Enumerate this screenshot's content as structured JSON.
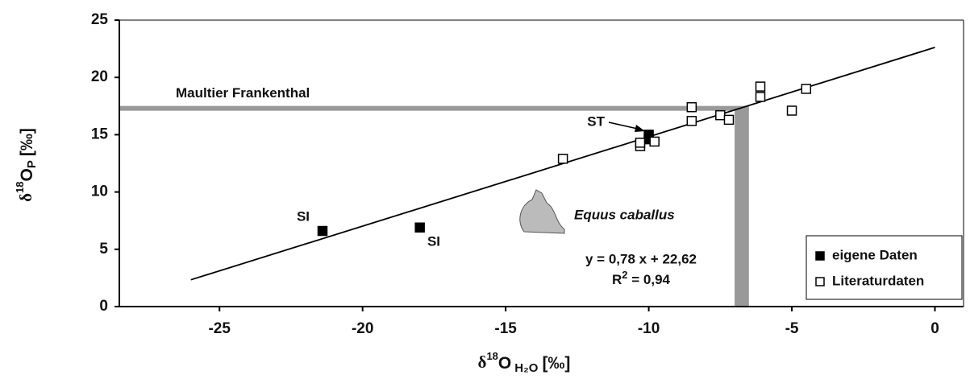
{
  "chart_data": {
    "type": "scatter",
    "x_label": {
      "prefix": "δ",
      "sup": "18",
      "main": "O",
      "sub": "H₂O",
      "suffix": "[‰]"
    },
    "y_label": {
      "prefix": "δ",
      "sup": "18",
      "main": "O",
      "sub": "P",
      "suffix": "[‰]"
    },
    "xlim": [
      -28.5,
      1
    ],
    "ylim": [
      0,
      25
    ],
    "xticks": [
      -25,
      -20,
      -15,
      -10,
      -5,
      0
    ],
    "yticks": [
      0,
      5,
      10,
      15,
      20,
      25
    ],
    "grid": false,
    "legend": "lower right",
    "series": [
      {
        "name": "eigene Daten",
        "marker": "filled",
        "color": "#000000",
        "x": [
          -21.4,
          -18,
          -10,
          -10
        ],
        "values": [
          6.6,
          6.9,
          15.0,
          14.6
        ]
      },
      {
        "name": "Literaturdaten",
        "marker": "open",
        "color": "#000000",
        "x": [
          -13,
          -10.3,
          -10.3,
          -9.8,
          -8.5,
          -8.5,
          -7.5,
          -7.2,
          -6.1,
          -6.1,
          -5,
          -4.5
        ],
        "values": [
          12.9,
          14.0,
          14.3,
          14.4,
          17.4,
          16.2,
          16.7,
          16.3,
          19.2,
          18.3,
          17.1,
          19.0
        ]
      }
    ],
    "fit_line": {
      "x": [
        -26,
        0
      ],
      "values": [
        2.34,
        22.62
      ],
      "color": "#000000"
    },
    "reference": {
      "label": "Maultier Frankenthal",
      "y": 17.3,
      "x_range": [
        -7,
        -6.5
      ],
      "color": "#999999"
    },
    "annotations": {
      "st": "ST",
      "si_left": "SI",
      "si_right": "SI",
      "species": "Equus caballus",
      "equation": "y = 0,78 x + 22,62",
      "r2_main": "R",
      "r2_sup": "2",
      "r2_rest": " = 0,94"
    }
  }
}
